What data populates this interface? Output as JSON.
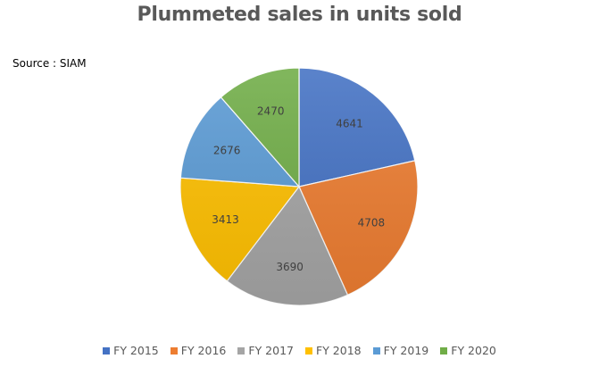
{
  "title": "Plummeted sales in units sold",
  "source": "Source : SIAM",
  "chart_data": {
    "type": "pie",
    "title": "Plummeted sales in units sold",
    "categories": [
      "FY 2015",
      "FY 2016",
      "FY 2017",
      "FY 2018",
      "FY 2019",
      "FY 2020"
    ],
    "values": [
      4641,
      4708,
      3690,
      3413,
      2676,
      2470
    ],
    "colors": [
      "#4472C4",
      "#ED7D31",
      "#A5A5A5",
      "#FFC000",
      "#5B9BD5",
      "#70AD47"
    ],
    "data_labels": true,
    "start_angle_deg": 0,
    "direction": "clockwise",
    "legend_position": "bottom",
    "annotation": "Source : SIAM"
  },
  "legend": [
    {
      "label": "FY 2015",
      "color": "#4472C4"
    },
    {
      "label": "FY 2016",
      "color": "#ED7D31"
    },
    {
      "label": "FY 2017",
      "color": "#A5A5A5"
    },
    {
      "label": "FY 2018",
      "color": "#FFC000"
    },
    {
      "label": "FY 2019",
      "color": "#5B9BD5"
    },
    {
      "label": "FY 2020",
      "color": "#70AD47"
    }
  ]
}
